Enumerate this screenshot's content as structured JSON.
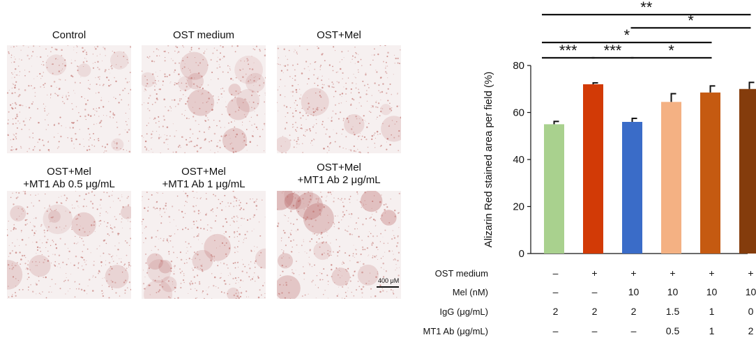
{
  "panels": [
    {
      "label": "Control",
      "density": 0.1
    },
    {
      "label": "OST medium",
      "density": 0.8
    },
    {
      "label": "OST+Mel",
      "density": 0.2
    },
    {
      "label": "OST+Mel\n+MT1 Ab 0.5 μg/mL",
      "density": 0.5
    },
    {
      "label": "OST+Mel\n+MT1 Ab 1 μg/mL",
      "density": 0.6
    },
    {
      "label": "OST+Mel\n+MT1 Ab 2 μg/mL",
      "density": 0.9
    }
  ],
  "scale_bar_label": "400 μM",
  "chart_data": {
    "type": "bar",
    "ylabel": "Alizarin Red stained area per field (%)",
    "ylim": [
      0,
      80
    ],
    "yticks": [
      0,
      20,
      40,
      60,
      80
    ],
    "values": [
      55,
      72,
      56,
      64.5,
      68.5,
      70
    ],
    "errors": [
      1.2,
      0.6,
      1.5,
      3.5,
      2.8,
      2.8
    ],
    "colors": [
      "#a9d18e",
      "#d23a06",
      "#3a6cc8",
      "#f4b183",
      "#c55a11",
      "#843c0c"
    ],
    "conditions": [
      {
        "label": "OST medium",
        "values": [
          "–",
          "+",
          "+",
          "+",
          "+",
          "+"
        ]
      },
      {
        "label": "Mel (nM)",
        "values": [
          "–",
          "–",
          "10",
          "10",
          "10",
          "10"
        ]
      },
      {
        "label": "IgG (μg/mL)",
        "values": [
          "2",
          "2",
          "2",
          "1.5",
          "1",
          "0"
        ]
      },
      {
        "label": "MT1 Ab (μg/mL)",
        "values": [
          "–",
          "–",
          "–",
          "0.5",
          "1",
          "2"
        ]
      }
    ],
    "significance": [
      {
        "from": 0,
        "to": 5,
        "label": "**"
      },
      {
        "from": 2,
        "to": 5,
        "label": "*"
      },
      {
        "from": 0,
        "to": 4,
        "label": "*"
      },
      {
        "from": 0,
        "to": 1,
        "label": "***"
      },
      {
        "from": 1,
        "to": 2,
        "label": "***"
      },
      {
        "from": 2,
        "to": 4,
        "label": "*"
      }
    ]
  }
}
